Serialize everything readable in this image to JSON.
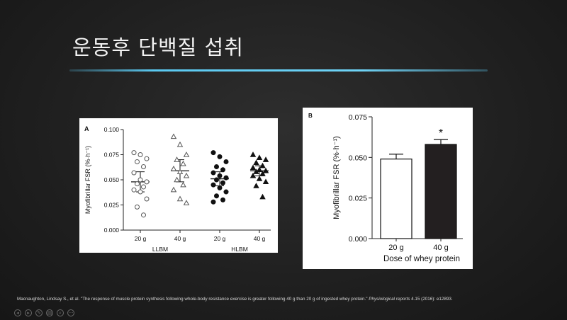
{
  "slide": {
    "title": "운동후 단백질 섭취"
  },
  "citation": {
    "text": "Macnaughton, Lindsay S., et al. \"The response of muscle protein synthesis following whole-body resistance exercise is greater following 40 g than 20 g of ingested whey protein.\" ",
    "journal": "Physiological reports",
    "tail": " 4.15 (2016): e12893."
  },
  "toolbar": {
    "icons": [
      "prev-icon",
      "next-icon",
      "pen-icon",
      "slides-icon",
      "zoom-icon",
      "more-icon"
    ],
    "glyphs": [
      "◂",
      "▸",
      "✎",
      "▤",
      "⌕",
      "⋯"
    ]
  },
  "chart_data": [
    {
      "type": "scatter",
      "panel_label": "A",
      "ylabel": "Myofibrillar FSR (%·h⁻¹)",
      "ylim": [
        0,
        0.1
      ],
      "yticks": [
        "0.000",
        "0.025",
        "0.050",
        "0.075",
        "0.100"
      ],
      "categories": [
        "20 g",
        "40 g",
        "20 g",
        "40 g"
      ],
      "group_labels": [
        "LLBM",
        "HLBM"
      ],
      "series": [
        {
          "name": "LLBM 20 g",
          "marker": "open-circle",
          "mean": 0.048,
          "sd": 0.01,
          "values": [
            0.077,
            0.075,
            0.071,
            0.068,
            0.063,
            0.057,
            0.05,
            0.048,
            0.046,
            0.043,
            0.04,
            0.038,
            0.031,
            0.023,
            0.015
          ]
        },
        {
          "name": "LLBM 40 g",
          "marker": "open-triangle",
          "mean": 0.059,
          "sd": 0.011,
          "values": [
            0.093,
            0.085,
            0.075,
            0.07,
            0.066,
            0.061,
            0.058,
            0.054,
            0.05,
            0.045,
            0.04,
            0.031,
            0.027
          ]
        },
        {
          "name": "HLBM 20 g",
          "marker": "filled-circle",
          "mean": 0.051,
          "sd": 0.007,
          "values": [
            0.077,
            0.073,
            0.068,
            0.063,
            0.06,
            0.057,
            0.054,
            0.052,
            0.05,
            0.047,
            0.045,
            0.042,
            0.038,
            0.034,
            0.03,
            0.028
          ]
        },
        {
          "name": "HLBM 40 g",
          "marker": "filled-triangle",
          "mean": 0.059,
          "sd": 0.005,
          "values": [
            0.075,
            0.072,
            0.07,
            0.067,
            0.064,
            0.062,
            0.06,
            0.059,
            0.058,
            0.056,
            0.054,
            0.051,
            0.048,
            0.044,
            0.033
          ]
        }
      ]
    },
    {
      "type": "bar",
      "panel_label": "B",
      "title": "",
      "xlabel": "Dose of whey protein",
      "ylabel": "Myofibrillar FSR (%·h⁻¹)",
      "ylim": [
        0,
        0.075
      ],
      "yticks": [
        "0.000",
        "0.025",
        "0.050",
        "0.075"
      ],
      "categories": [
        "20 g",
        "40 g"
      ],
      "values": [
        0.049,
        0.058
      ],
      "errors": [
        0.003,
        0.003
      ],
      "bar_colors": [
        "#ffffff",
        "#231f20"
      ],
      "significance": [
        "",
        "*"
      ]
    }
  ]
}
